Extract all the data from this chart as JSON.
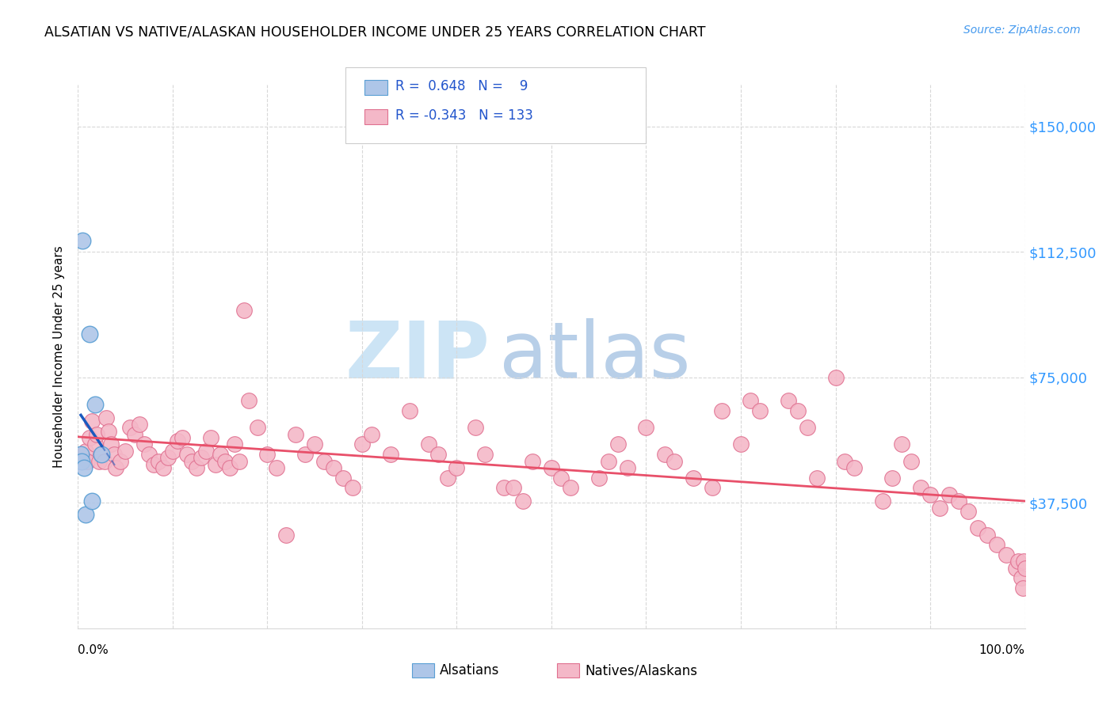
{
  "title": "ALSATIAN VS NATIVE/ALASKAN HOUSEHOLDER INCOME UNDER 25 YEARS CORRELATION CHART",
  "source": "Source: ZipAtlas.com",
  "ylabel": "Householder Income Under 25 years",
  "ytick_labels": [
    "$37,500",
    "$75,000",
    "$112,500",
    "$150,000"
  ],
  "ytick_values": [
    37500,
    75000,
    112500,
    150000
  ],
  "ymin": 0,
  "ymax": 162500,
  "xmin": 0,
  "xmax": 100,
  "alsatian_color": "#aec6e8",
  "alsatian_edge": "#5a9fd4",
  "native_color": "#f4b8c8",
  "native_edge": "#e07090",
  "blue_line_color": "#1a5abf",
  "pink_line_color": "#e8506a",
  "grid_color": "#d8d8d8",
  "alsatian_x": [
    0.3,
    0.4,
    0.5,
    0.6,
    0.8,
    1.2,
    1.5,
    1.8,
    2.5
  ],
  "alsatian_y": [
    52000,
    50000,
    116000,
    48000,
    34000,
    88000,
    38000,
    67000,
    52000
  ],
  "native_x": [
    0.8,
    1.0,
    1.2,
    1.5,
    1.8,
    2.0,
    2.2,
    2.5,
    2.8,
    3.0,
    3.2,
    3.5,
    3.8,
    4.0,
    4.5,
    5.0,
    5.5,
    6.0,
    6.5,
    7.0,
    7.5,
    8.0,
    8.5,
    9.0,
    9.5,
    10.0,
    10.5,
    11.0,
    11.5,
    12.0,
    12.5,
    13.0,
    13.5,
    14.0,
    14.5,
    15.0,
    15.5,
    16.0,
    16.5,
    17.0,
    17.5,
    18.0,
    19.0,
    20.0,
    21.0,
    22.0,
    23.0,
    24.0,
    25.0,
    26.0,
    27.0,
    28.0,
    29.0,
    30.0,
    31.0,
    33.0,
    35.0,
    37.0,
    38.0,
    39.0,
    40.0,
    42.0,
    43.0,
    45.0,
    46.0,
    47.0,
    48.0,
    50.0,
    51.0,
    52.0,
    55.0,
    56.0,
    57.0,
    58.0,
    60.0,
    62.0,
    63.0,
    65.0,
    67.0,
    68.0,
    70.0,
    71.0,
    72.0,
    75.0,
    76.0,
    77.0,
    78.0,
    80.0,
    81.0,
    82.0,
    85.0,
    86.0,
    87.0,
    88.0,
    89.0,
    90.0,
    91.0,
    92.0,
    93.0,
    94.0,
    95.0,
    96.0,
    97.0,
    98.0,
    99.0,
    99.3,
    99.6,
    99.8,
    99.9,
    100.0
  ],
  "native_y": [
    53000,
    50000,
    57000,
    62000,
    55000,
    58000,
    50000,
    52000,
    50000,
    63000,
    59000,
    55000,
    52000,
    48000,
    50000,
    53000,
    60000,
    58000,
    61000,
    55000,
    52000,
    49000,
    50000,
    48000,
    51000,
    53000,
    56000,
    57000,
    52000,
    50000,
    48000,
    51000,
    53000,
    57000,
    49000,
    52000,
    50000,
    48000,
    55000,
    50000,
    95000,
    68000,
    60000,
    52000,
    48000,
    28000,
    58000,
    52000,
    55000,
    50000,
    48000,
    45000,
    42000,
    55000,
    58000,
    52000,
    65000,
    55000,
    52000,
    45000,
    48000,
    60000,
    52000,
    42000,
    42000,
    38000,
    50000,
    48000,
    45000,
    42000,
    45000,
    50000,
    55000,
    48000,
    60000,
    52000,
    50000,
    45000,
    42000,
    65000,
    55000,
    68000,
    65000,
    68000,
    65000,
    60000,
    45000,
    75000,
    50000,
    48000,
    38000,
    45000,
    55000,
    50000,
    42000,
    40000,
    36000,
    40000,
    38000,
    35000,
    30000,
    28000,
    25000,
    22000,
    18000,
    20000,
    15000,
    12000,
    20000,
    18000
  ]
}
